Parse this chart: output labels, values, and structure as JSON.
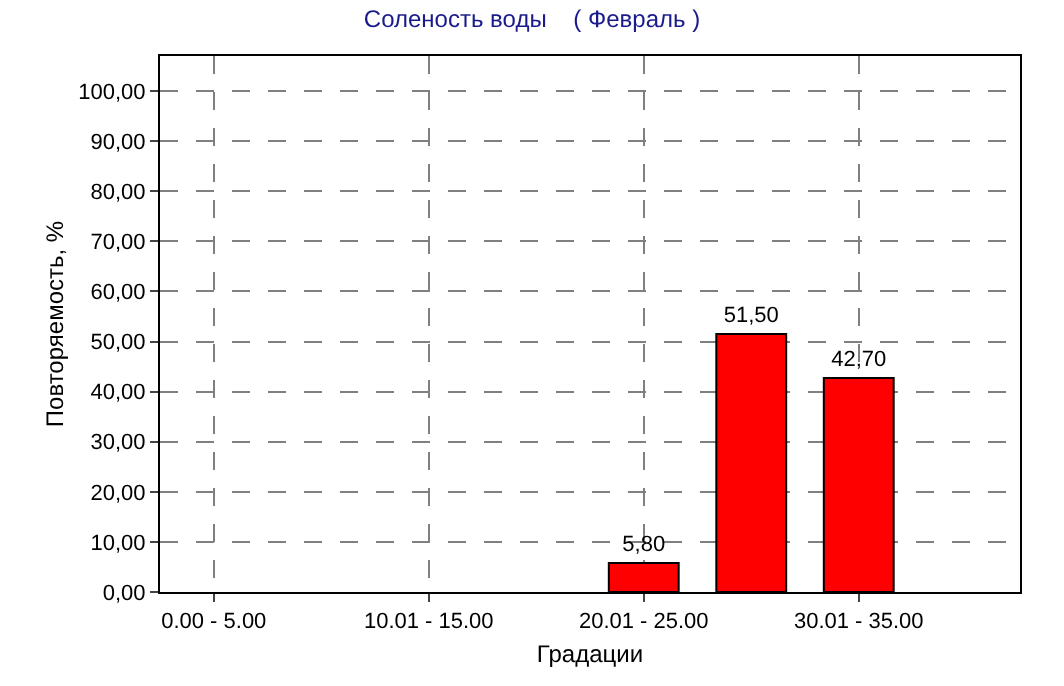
{
  "chart_data": {
    "type": "bar",
    "title": "Соленость воды    ( Февраль )",
    "xlabel": "Градации",
    "ylabel": "Повторяемость, %",
    "categories": [
      "0.00 - 5.00",
      null,
      "10.01 - 15.00",
      null,
      "20.01 - 25.00",
      null,
      "30.01 - 35.00",
      null
    ],
    "values": [
      null,
      null,
      null,
      null,
      5.8,
      51.5,
      42.7,
      null
    ],
    "value_labels": [
      null,
      null,
      null,
      null,
      "5,80",
      "51,50",
      "42,70",
      null
    ],
    "color": "#ff0000",
    "ylim": [
      0,
      107
    ],
    "yticks": [
      {
        "value": 0,
        "label": "0,00"
      },
      {
        "value": 10,
        "label": "10,00"
      },
      {
        "value": 20,
        "label": "20,00"
      },
      {
        "value": 30,
        "label": "30,00"
      },
      {
        "value": 40,
        "label": "40,00"
      },
      {
        "value": 50,
        "label": "50,00"
      },
      {
        "value": 60,
        "label": "60,00"
      },
      {
        "value": 70,
        "label": "70,00"
      },
      {
        "value": 80,
        "label": "80,00"
      },
      {
        "value": 90,
        "label": "90,00"
      },
      {
        "value": 100,
        "label": "100,00"
      }
    ],
    "grid": true
  }
}
